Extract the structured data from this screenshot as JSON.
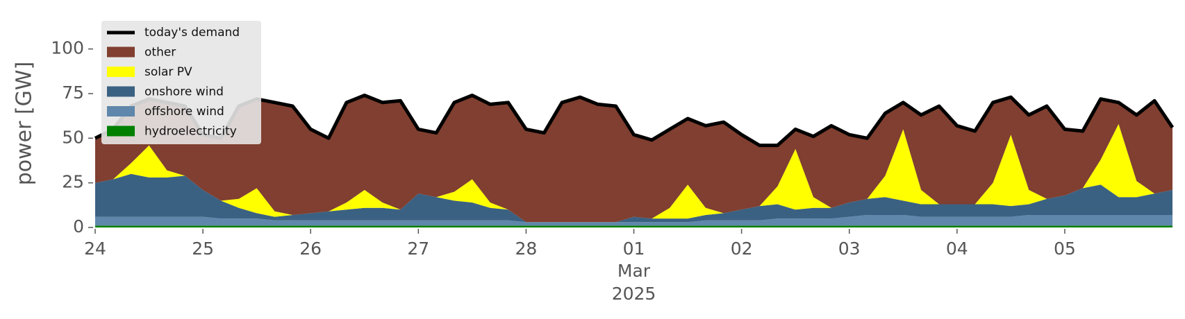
{
  "chart_data": {
    "type": "stacked-area",
    "ylabel": "power [GW]",
    "x": [
      0,
      4,
      8,
      12,
      16,
      20,
      24,
      28,
      32,
      36,
      40,
      44,
      48,
      52,
      56,
      60,
      64,
      68,
      72,
      76,
      80,
      84,
      88,
      92,
      96,
      100,
      104,
      108,
      112,
      116,
      120,
      124,
      128,
      132,
      136,
      140,
      144,
      148,
      152,
      156,
      160,
      164,
      168,
      172,
      176,
      180,
      184,
      188,
      192,
      196,
      200,
      204,
      208,
      212,
      216,
      220,
      224,
      228,
      232,
      236,
      240
    ],
    "xlim": [
      0,
      240
    ],
    "xticks": [
      {
        "value": 0,
        "label": "24"
      },
      {
        "value": 24,
        "label": "25"
      },
      {
        "value": 48,
        "label": "26"
      },
      {
        "value": 72,
        "label": "27"
      },
      {
        "value": 96,
        "label": "28"
      },
      {
        "value": 120,
        "label": "01"
      },
      {
        "value": 144,
        "label": "02"
      },
      {
        "value": 168,
        "label": "03"
      },
      {
        "value": 192,
        "label": "04"
      },
      {
        "value": 216,
        "label": "05"
      }
    ],
    "x_sublabels": {
      "at": 120,
      "lines": [
        "Mar",
        "2025"
      ]
    },
    "ylim": [
      0,
      115
    ],
    "yticks": [
      0,
      25,
      50,
      75,
      100
    ],
    "legend": "upper left",
    "line": {
      "name": "today's demand",
      "color": "#000000",
      "values": [
        50,
        55,
        68,
        72,
        70,
        68,
        52,
        50,
        68,
        72,
        70,
        68,
        55,
        50,
        70,
        74,
        70,
        71,
        55,
        53,
        70,
        74,
        69,
        70,
        55,
        53,
        70,
        73,
        69,
        68,
        52,
        49,
        55,
        61,
        57,
        59,
        52,
        46,
        46,
        55,
        51,
        57,
        52,
        50,
        64,
        70,
        63,
        68,
        57,
        54,
        70,
        73,
        63,
        68,
        55,
        54,
        72,
        70,
        63,
        71,
        56
      ]
    },
    "series": [
      {
        "name": "other",
        "color": "#803f30",
        "values": [
          25,
          28,
          32,
          26,
          38,
          39,
          31,
          35,
          52,
          50,
          61,
          61,
          47,
          41,
          56,
          53,
          56,
          61,
          36,
          36,
          50,
          47,
          55,
          60,
          52,
          50,
          67,
          70,
          66,
          65,
          46,
          44,
          44,
          37,
          46,
          51,
          42,
          34,
          23,
          11,
          34,
          46,
          38,
          34,
          35,
          15,
          42,
          55,
          44,
          41,
          45,
          21,
          42,
          52,
          37,
          32,
          34,
          12,
          37,
          52,
          35
        ]
      },
      {
        "name": "solar PV",
        "color": "#ffff00",
        "values": [
          0,
          0,
          6,
          18,
          4,
          0,
          0,
          0,
          5,
          14,
          3,
          0,
          0,
          0,
          4,
          10,
          3,
          0,
          0,
          0,
          5,
          13,
          3,
          0,
          0,
          0,
          0,
          0,
          0,
          0,
          0,
          0,
          6,
          19,
          4,
          0,
          0,
          0,
          10,
          34,
          6,
          0,
          0,
          0,
          12,
          40,
          8,
          0,
          0,
          0,
          12,
          40,
          8,
          0,
          0,
          0,
          14,
          41,
          9,
          0,
          0
        ]
      },
      {
        "name": "onshore wind",
        "color": "#3b6182",
        "values": [
          19,
          21,
          24,
          22,
          22,
          23,
          15,
          10,
          6,
          3,
          2,
          3,
          4,
          5,
          6,
          7,
          7,
          6,
          15,
          13,
          11,
          10,
          7,
          6,
          0,
          0,
          0,
          0,
          0,
          0,
          3,
          2,
          2,
          2,
          3,
          4,
          6,
          8,
          8,
          5,
          6,
          6,
          8,
          9,
          10,
          8,
          7,
          7,
          7,
          7,
          7,
          6,
          6,
          9,
          11,
          15,
          17,
          10,
          10,
          12,
          14
        ]
      },
      {
        "name": "offshore wind",
        "color": "#5f87ab",
        "values": [
          5,
          5,
          5,
          5,
          5,
          5,
          5,
          4,
          4,
          4,
          3,
          3,
          3,
          3,
          3,
          3,
          3,
          3,
          3,
          3,
          3,
          3,
          3,
          3,
          2,
          2,
          2,
          2,
          2,
          2,
          2,
          2,
          2,
          2,
          3,
          3,
          3,
          3,
          4,
          4,
          4,
          4,
          5,
          6,
          6,
          6,
          5,
          5,
          5,
          5,
          5,
          5,
          6,
          6,
          6,
          6,
          6,
          6,
          6,
          6,
          6
        ]
      },
      {
        "name": "hydroelectricity",
        "color": "#008000",
        "values": [
          1,
          1,
          1,
          1,
          1,
          1,
          1,
          1,
          1,
          1,
          1,
          1,
          1,
          1,
          1,
          1,
          1,
          1,
          1,
          1,
          1,
          1,
          1,
          1,
          1,
          1,
          1,
          1,
          1,
          1,
          1,
          1,
          1,
          1,
          1,
          1,
          1,
          1,
          1,
          1,
          1,
          1,
          1,
          1,
          1,
          1,
          1,
          1,
          1,
          1,
          1,
          1,
          1,
          1,
          1,
          1,
          1,
          1,
          1,
          1,
          1
        ]
      }
    ]
  }
}
